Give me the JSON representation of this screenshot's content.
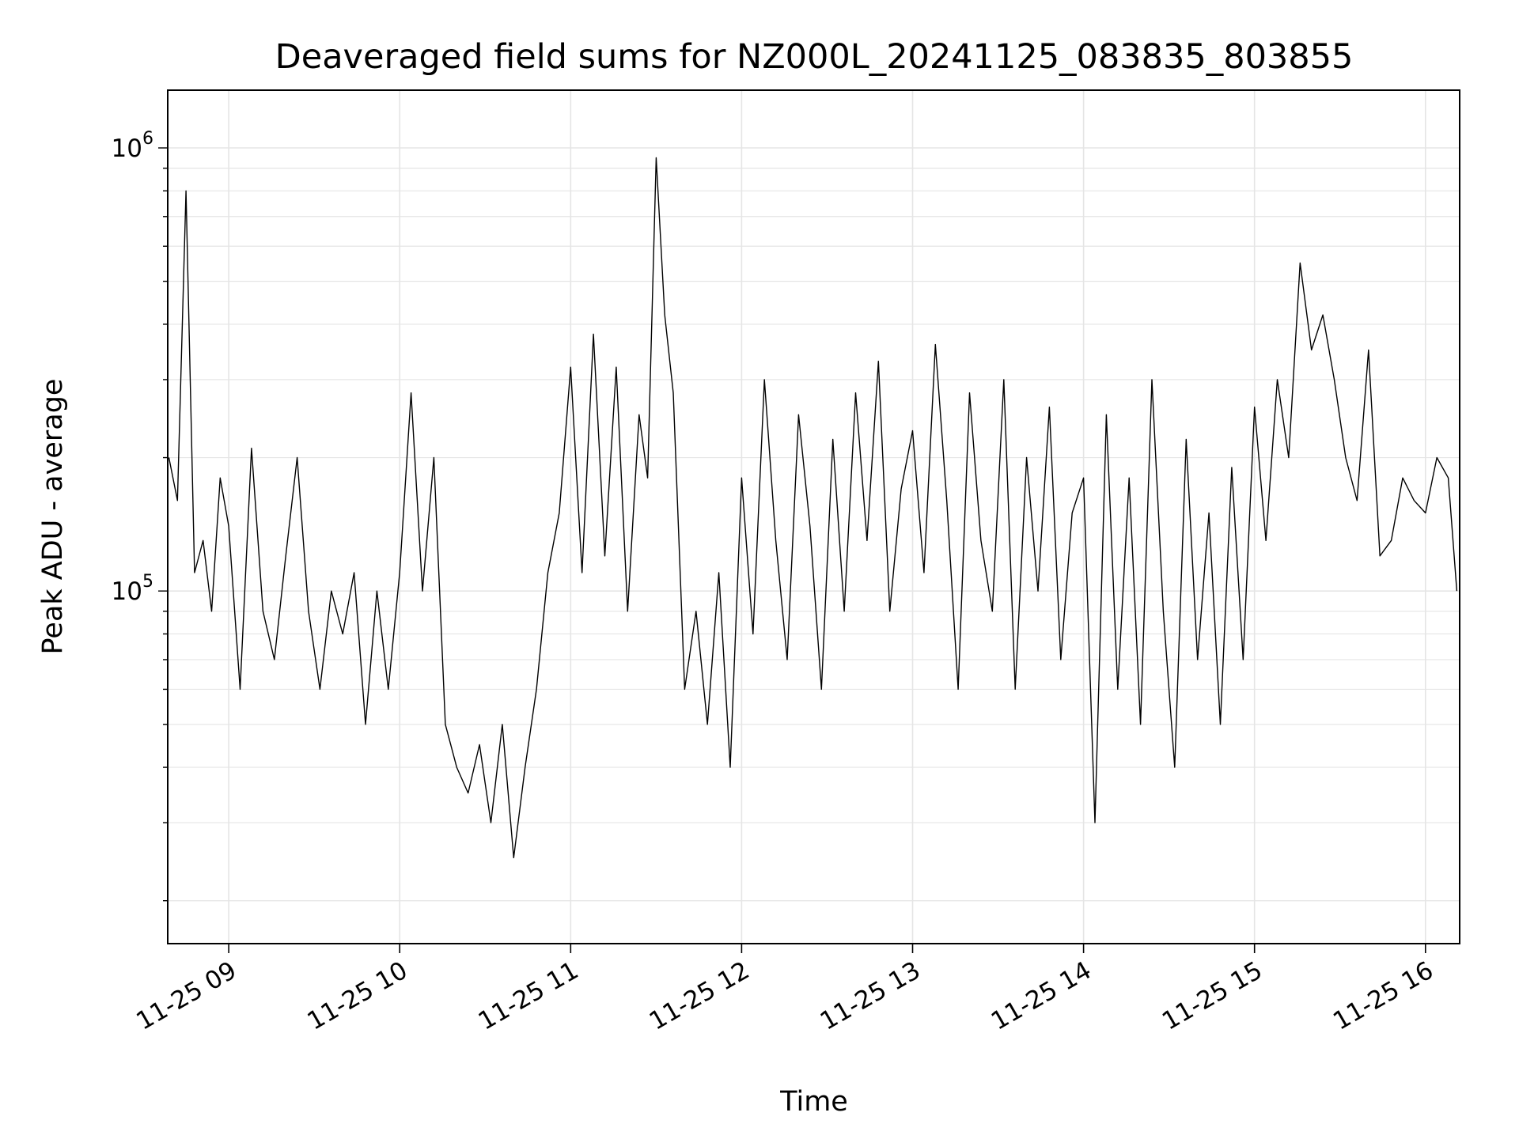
{
  "chart_data": {
    "type": "line",
    "title": "Deaveraged field sums for NZ000L_20241125_083835_803855",
    "xlabel": "Time",
    "ylabel": "Peak ADU - average",
    "xlim": [
      "2024-11-25 08:38:35",
      "2024-11-25 16:12:00"
    ],
    "ylim": [
      16000,
      1350000
    ],
    "yscale": "log",
    "grid": true,
    "line_color": "#000000",
    "x_ticks": [
      {
        "value": "2024-11-25 09:00",
        "label": "11-25 09"
      },
      {
        "value": "2024-11-25 10:00",
        "label": "11-25 10"
      },
      {
        "value": "2024-11-25 11:00",
        "label": "11-25 11"
      },
      {
        "value": "2024-11-25 12:00",
        "label": "11-25 12"
      },
      {
        "value": "2024-11-25 13:00",
        "label": "11-25 13"
      },
      {
        "value": "2024-11-25 14:00",
        "label": "11-25 14"
      },
      {
        "value": "2024-11-25 15:00",
        "label": "11-25 15"
      },
      {
        "value": "2024-11-25 16:00",
        "label": "11-25 16"
      }
    ],
    "y_ticks": [
      {
        "value": 100000,
        "base": "10",
        "exp": "5"
      },
      {
        "value": 1000000,
        "base": "10",
        "exp": "6"
      }
    ],
    "series": [
      {
        "x": [
          "2024-11-25 08:39",
          "2024-11-25 08:42",
          "2024-11-25 08:45",
          "2024-11-25 08:48",
          "2024-11-25 08:51",
          "2024-11-25 08:54",
          "2024-11-25 08:57",
          "2024-11-25 09:00",
          "2024-11-25 09:04",
          "2024-11-25 09:08",
          "2024-11-25 09:12",
          "2024-11-25 09:16",
          "2024-11-25 09:20",
          "2024-11-25 09:24",
          "2024-11-25 09:28",
          "2024-11-25 09:32",
          "2024-11-25 09:36",
          "2024-11-25 09:40",
          "2024-11-25 09:44",
          "2024-11-25 09:48",
          "2024-11-25 09:52",
          "2024-11-25 09:56",
          "2024-11-25 10:00",
          "2024-11-25 10:04",
          "2024-11-25 10:08",
          "2024-11-25 10:12",
          "2024-11-25 10:16",
          "2024-11-25 10:20",
          "2024-11-25 10:24",
          "2024-11-25 10:28",
          "2024-11-25 10:32",
          "2024-11-25 10:36",
          "2024-11-25 10:40",
          "2024-11-25 10:44",
          "2024-11-25 10:48",
          "2024-11-25 10:52",
          "2024-11-25 10:56",
          "2024-11-25 11:00",
          "2024-11-25 11:04",
          "2024-11-25 11:08",
          "2024-11-25 11:12",
          "2024-11-25 11:16",
          "2024-11-25 11:20",
          "2024-11-25 11:24",
          "2024-11-25 11:27",
          "2024-11-25 11:30",
          "2024-11-25 11:33",
          "2024-11-25 11:36",
          "2024-11-25 11:40",
          "2024-11-25 11:44",
          "2024-11-25 11:48",
          "2024-11-25 11:52",
          "2024-11-25 11:56",
          "2024-11-25 12:00",
          "2024-11-25 12:04",
          "2024-11-25 12:08",
          "2024-11-25 12:12",
          "2024-11-25 12:16",
          "2024-11-25 12:20",
          "2024-11-25 12:24",
          "2024-11-25 12:28",
          "2024-11-25 12:32",
          "2024-11-25 12:36",
          "2024-11-25 12:40",
          "2024-11-25 12:44",
          "2024-11-25 12:48",
          "2024-11-25 12:52",
          "2024-11-25 12:56",
          "2024-11-25 13:00",
          "2024-11-25 13:04",
          "2024-11-25 13:08",
          "2024-11-25 13:12",
          "2024-11-25 13:16",
          "2024-11-25 13:20",
          "2024-11-25 13:24",
          "2024-11-25 13:28",
          "2024-11-25 13:32",
          "2024-11-25 13:36",
          "2024-11-25 13:40",
          "2024-11-25 13:44",
          "2024-11-25 13:48",
          "2024-11-25 13:52",
          "2024-11-25 13:56",
          "2024-11-25 14:00",
          "2024-11-25 14:04",
          "2024-11-25 14:08",
          "2024-11-25 14:12",
          "2024-11-25 14:16",
          "2024-11-25 14:20",
          "2024-11-25 14:24",
          "2024-11-25 14:28",
          "2024-11-25 14:32",
          "2024-11-25 14:36",
          "2024-11-25 14:40",
          "2024-11-25 14:44",
          "2024-11-25 14:48",
          "2024-11-25 14:52",
          "2024-11-25 14:56",
          "2024-11-25 15:00",
          "2024-11-25 15:04",
          "2024-11-25 15:08",
          "2024-11-25 15:12",
          "2024-11-25 15:16",
          "2024-11-25 15:20",
          "2024-11-25 15:24",
          "2024-11-25 15:28",
          "2024-11-25 15:32",
          "2024-11-25 15:36",
          "2024-11-25 15:40",
          "2024-11-25 15:44",
          "2024-11-25 15:48",
          "2024-11-25 15:52",
          "2024-11-25 15:56",
          "2024-11-25 16:00",
          "2024-11-25 16:04",
          "2024-11-25 16:08",
          "2024-11-25 16:11"
        ],
        "y": [
          200000,
          160000,
          800000,
          110000,
          130000,
          90000,
          180000,
          140000,
          60000,
          210000,
          90000,
          70000,
          120000,
          200000,
          90000,
          60000,
          100000,
          80000,
          110000,
          50000,
          100000,
          60000,
          110000,
          280000,
          100000,
          200000,
          50000,
          40000,
          35000,
          45000,
          30000,
          50000,
          25000,
          40000,
          60000,
          110000,
          150000,
          320000,
          110000,
          380000,
          120000,
          320000,
          90000,
          250000,
          180000,
          950000,
          420000,
          280000,
          60000,
          90000,
          50000,
          110000,
          40000,
          180000,
          80000,
          300000,
          130000,
          70000,
          250000,
          140000,
          60000,
          220000,
          90000,
          280000,
          130000,
          330000,
          90000,
          170000,
          230000,
          110000,
          360000,
          160000,
          60000,
          280000,
          130000,
          90000,
          300000,
          60000,
          200000,
          100000,
          260000,
          70000,
          150000,
          180000,
          30000,
          250000,
          60000,
          180000,
          50000,
          300000,
          90000,
          40000,
          220000,
          70000,
          150000,
          50000,
          190000,
          70000,
          260000,
          130000,
          300000,
          200000,
          550000,
          350000,
          420000,
          300000,
          200000,
          160000,
          350000,
          120000,
          130000,
          180000,
          160000,
          150000,
          200000,
          180000,
          100000
        ]
      }
    ]
  }
}
